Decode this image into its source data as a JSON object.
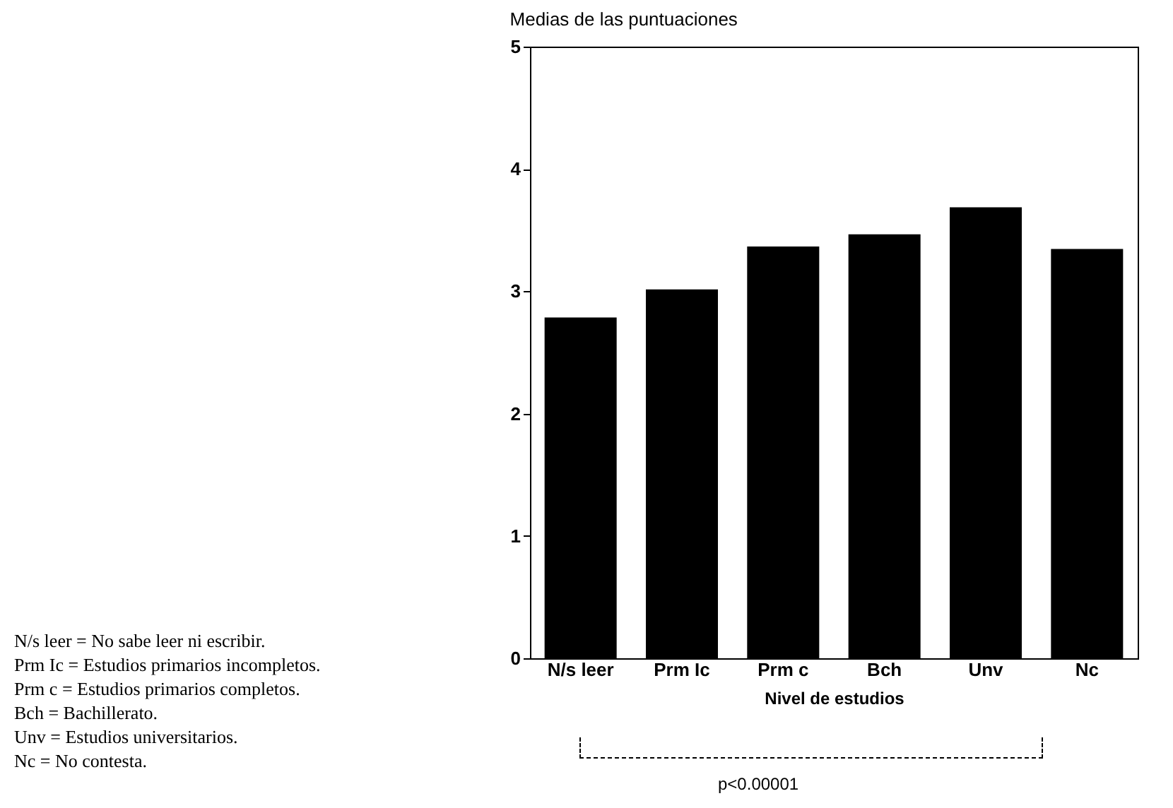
{
  "chart_data": {
    "type": "bar",
    "title": "Medias de las puntuaciones",
    "xlabel": "Nivel de estudios",
    "categories": [
      "N/s leer",
      "Prm Ic",
      "Prm c",
      "Bch",
      "Unv",
      "Nc"
    ],
    "values": [
      2.78,
      3.01,
      3.36,
      3.46,
      3.68,
      3.34
    ],
    "color": "#000000",
    "ylim": [
      0,
      5
    ],
    "yticks": [
      0,
      1,
      2,
      3,
      4,
      5
    ],
    "grid": false,
    "annotations": [
      "N/s leer = No sabe leer ni escribir.",
      "Prm Ic = Estudios primarios incompletos.",
      "Prm c = Estudios primarios completos.",
      "Bch = Bachillerato.",
      "Unv = Estudios universitarios.",
      "Nc = No contesta.",
      "p<0.00001"
    ]
  }
}
